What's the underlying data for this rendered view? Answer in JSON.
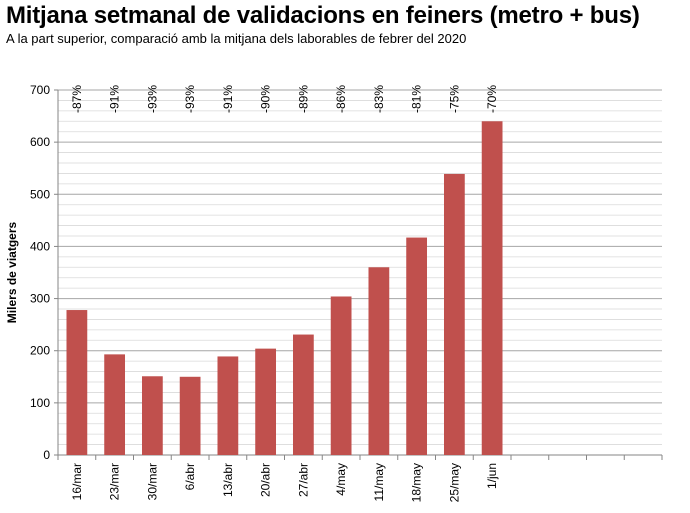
{
  "title": "Mitjana setmanal de validacions en feiners (metro + bus)",
  "subtitle": "A la part superior, comparació amb la mitjana dels laborables de febrer del 2020",
  "colors": {
    "bar": "#c0504d",
    "grid": "#bfbfbf"
  },
  "chart_data": {
    "type": "bar",
    "title": "Mitjana setmanal de validacions en feiners (metro + bus)",
    "subtitle": "A la part superior, comparació amb la mitjana dels laborables de febrer del 2020",
    "xlabel": "",
    "ylabel": "Milers de viatgers",
    "ylim": [
      0,
      700
    ],
    "yticks": [
      0,
      100,
      200,
      300,
      400,
      500,
      600,
      700
    ],
    "grid": true,
    "categories": [
      "16/mar",
      "23/mar",
      "30/mar",
      "6/abr",
      "13/abr",
      "20/abr",
      "27/abr",
      "4/may",
      "11/may",
      "18/may",
      "25/may",
      "1/jun",
      "",
      "",
      "",
      ""
    ],
    "values": [
      278,
      193,
      151,
      150,
      189,
      204,
      231,
      304,
      360,
      417,
      539,
      640,
      null,
      null,
      null,
      null
    ],
    "top_labels": [
      "-87%",
      "-91%",
      "-93%",
      "-93%",
      "-91%",
      "-90%",
      "-89%",
      "-86%",
      "-83%",
      "-81%",
      "-75%",
      "-70%",
      "",
      "",
      "",
      ""
    ]
  }
}
